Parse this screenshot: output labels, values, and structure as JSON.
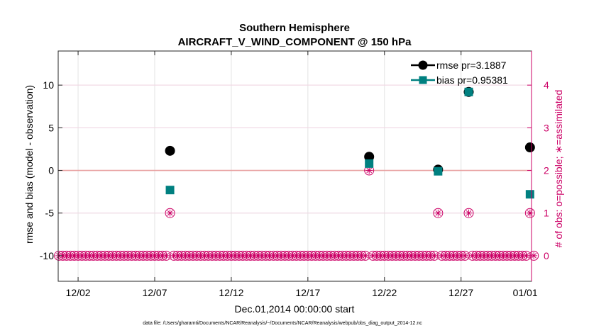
{
  "chart_data": {
    "type": "scatter",
    "title": "Southern Hemisphere",
    "subtitle": "AIRCRAFT_V_WIND_COMPONENT @ 150 hPa",
    "xlabel": "Dec.01,2014 00:00:00 start",
    "ylabel_left": "rmse and bias (model - observation)",
    "ylabel_right": "# of obs: o=possible; ∗=assimilated",
    "footnote": "data file: /Users/gharamti/Documents/NCAR/Reanalysis/~/Documents/NCAR/Reanalysis/webpub/obs_diag_output_2014-12.nc",
    "xlim": [
      0.7,
      31.6
    ],
    "ylim_left": [
      -13,
      14
    ],
    "ylim_right": [
      -0.6,
      4.8
    ],
    "x_ticks": [
      {
        "x": 2,
        "label": "12/02"
      },
      {
        "x": 7,
        "label": "12/07"
      },
      {
        "x": 12,
        "label": "12/12"
      },
      {
        "x": 17,
        "label": "12/17"
      },
      {
        "x": 22,
        "label": "12/22"
      },
      {
        "x": 27,
        "label": "12/27"
      },
      {
        "x": 32,
        "label": "01/01"
      }
    ],
    "y_ticks_left": [
      {
        "v": -10,
        "label": "-10"
      },
      {
        "v": -5,
        "label": "-5"
      },
      {
        "v": 0,
        "label": "0"
      },
      {
        "v": 5,
        "label": "5"
      },
      {
        "v": 10,
        "label": "10"
      }
    ],
    "y_ticks_right": [
      {
        "v": 0,
        "label": "0"
      },
      {
        "v": 1,
        "label": "1"
      },
      {
        "v": 2,
        "label": "2"
      },
      {
        "v": 3,
        "label": "3"
      },
      {
        "v": 4,
        "label": "4"
      }
    ],
    "grid": true,
    "legend_position": "top-right",
    "series": [
      {
        "name": "rmse pr=3.1887",
        "color": "#000000",
        "marker": "circle",
        "points": [
          {
            "x": 8.0,
            "y": 2.3
          },
          {
            "x": 21.0,
            "y": 1.6
          },
          {
            "x": 25.5,
            "y": 0.1
          },
          {
            "x": 27.5,
            "y": 9.2
          },
          {
            "x": 31.5,
            "y": 2.7
          }
        ]
      },
      {
        "name": "bias pr=0.95381",
        "color": "#008080",
        "marker": "square",
        "points": [
          {
            "x": 8.0,
            "y": -2.3
          },
          {
            "x": 21.0,
            "y": 0.8
          },
          {
            "x": 25.5,
            "y": -0.1
          },
          {
            "x": 27.5,
            "y": 9.2
          },
          {
            "x": 31.5,
            "y": -2.8
          }
        ]
      }
    ],
    "obs_counts": {
      "color": "#cc0066",
      "x_start": 0.75,
      "x_end": 31.75,
      "x_step": 0.25,
      "default_count": 0,
      "nonzero": [
        {
          "x": 8.0,
          "possible": 1,
          "assimilated": 1
        },
        {
          "x": 21.0,
          "possible": 2,
          "assimilated": 2
        },
        {
          "x": 25.5,
          "possible": 1,
          "assimilated": 1
        },
        {
          "x": 27.5,
          "possible": 1,
          "assimilated": 1
        },
        {
          "x": 31.5,
          "possible": 1,
          "assimilated": 1
        }
      ]
    },
    "zero_line": {
      "y": 0,
      "color": "#e8a0a0"
    }
  }
}
